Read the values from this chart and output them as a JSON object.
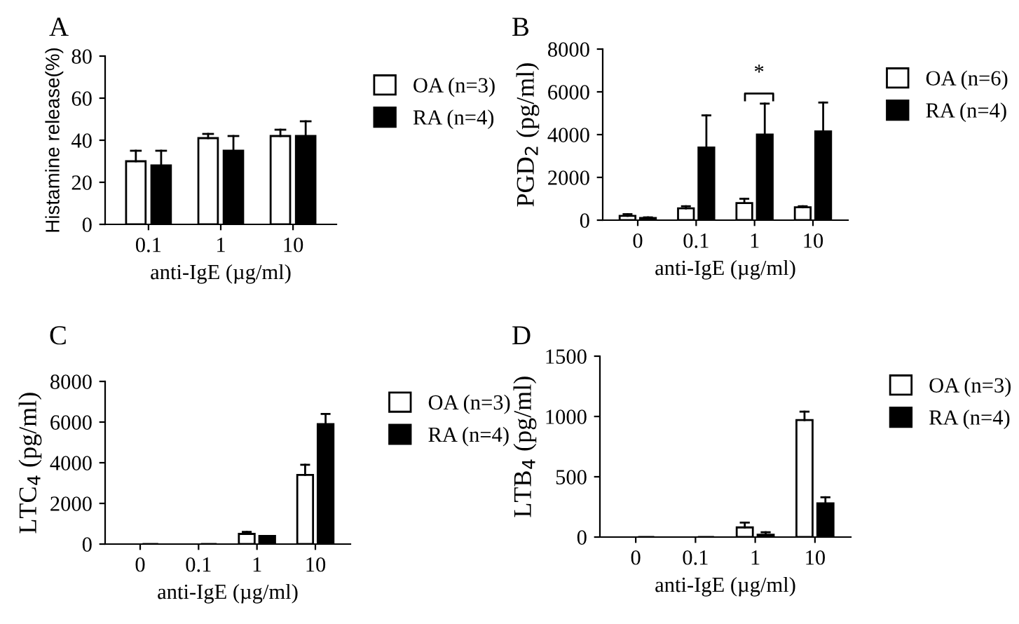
{
  "chart_data": [
    {
      "type": "bar",
      "title": "A",
      "categories": [
        "0.1",
        "1",
        "10"
      ],
      "xlabel": "anti-IgE (µg/ml)",
      "ylabel": "Histamine release(%)",
      "ylim": [
        0,
        80
      ],
      "yticks": [
        0,
        20,
        40,
        60,
        80
      ],
      "legend": "right",
      "grid": false,
      "series": [
        {
          "name": "OA (n=3)",
          "color": "#ffffff",
          "values": [
            30,
            41,
            42
          ],
          "errors": [
            [
              30,
              35
            ],
            [
              41,
              43
            ],
            [
              42,
              45
            ]
          ]
        },
        {
          "name": "RA (n=4)",
          "color": "#000000",
          "values": [
            28,
            35,
            42
          ],
          "errors": [
            [
              28,
              35
            ],
            [
              35,
              42
            ],
            [
              42,
              49
            ]
          ]
        }
      ]
    },
    {
      "type": "bar",
      "title": "B",
      "categories": [
        "0",
        "0.1",
        "1",
        "10"
      ],
      "xlabel": "anti-IgE (µg/ml)",
      "ylabel": "PGD$_{2}$ (pg/ml)",
      "ylim": [
        0,
        8000
      ],
      "yticks": [
        0,
        2000,
        4000,
        6000,
        8000
      ],
      "legend": "right",
      "grid": false,
      "annotations": [
        "*"
      ],
      "series": [
        {
          "name": "OA (n=6)",
          "color": "#ffffff",
          "values": [
            200,
            550,
            800,
            600
          ],
          "errors": [
            [
              200,
              280
            ],
            [
              550,
              650
            ],
            [
              800,
              1000
            ],
            [
              600,
              650
            ]
          ]
        },
        {
          "name": "RA (n=4)",
          "color": "#000000",
          "values": [
            100,
            3400,
            4000,
            4150
          ],
          "errors": [
            [
              100,
              130
            ],
            [
              3400,
              4900
            ],
            [
              4000,
              5450
            ],
            [
              4150,
              5500
            ]
          ]
        }
      ]
    },
    {
      "type": "bar",
      "title": "C",
      "categories": [
        "0",
        "0.1",
        "1",
        "10"
      ],
      "xlabel": "anti-IgE (µg/ml)",
      "ylabel": "LTC$_{4}$ (pg/ml)",
      "ylim": [
        0,
        8000
      ],
      "yticks": [
        0,
        2000,
        4000,
        6000,
        8000
      ],
      "legend": "top right",
      "grid": false,
      "series": [
        {
          "name": "OA (n=3)",
          "color": "#ffffff",
          "values": [
            0,
            0,
            500,
            3400
          ],
          "errors": [
            [
              0,
              0
            ],
            [
              0,
              0
            ],
            [
              500,
              600
            ],
            [
              3400,
              3900
            ]
          ]
        },
        {
          "name": "RA (n=4)",
          "color": "#000000",
          "values": [
            0,
            0,
            400,
            5900
          ],
          "errors": [
            [
              0,
              0
            ],
            [
              0,
              0
            ],
            [
              400,
              400
            ],
            [
              5900,
              6400
            ]
          ]
        }
      ]
    },
    {
      "type": "bar",
      "title": "D",
      "categories": [
        "0",
        "0.1",
        "1",
        "10"
      ],
      "xlabel": "anti-IgE (µg/ml)",
      "ylabel": "LTB$_{4}$ (pg/ml)",
      "ylim": [
        0,
        1500
      ],
      "yticks": [
        0,
        500,
        1000,
        1500
      ],
      "legend": "right",
      "grid": false,
      "series": [
        {
          "name": "OA (n=3)",
          "color": "#ffffff",
          "values": [
            0,
            0,
            80,
            970
          ],
          "errors": [
            [
              0,
              0
            ],
            [
              0,
              0
            ],
            [
              80,
              120
            ],
            [
              970,
              1040
            ]
          ]
        },
        {
          "name": "RA (n=4)",
          "color": "#000000",
          "values": [
            0,
            0,
            20,
            280
          ],
          "errors": [
            [
              0,
              0
            ],
            [
              0,
              0
            ],
            [
              20,
              40
            ],
            [
              280,
              330
            ]
          ]
        }
      ]
    }
  ]
}
